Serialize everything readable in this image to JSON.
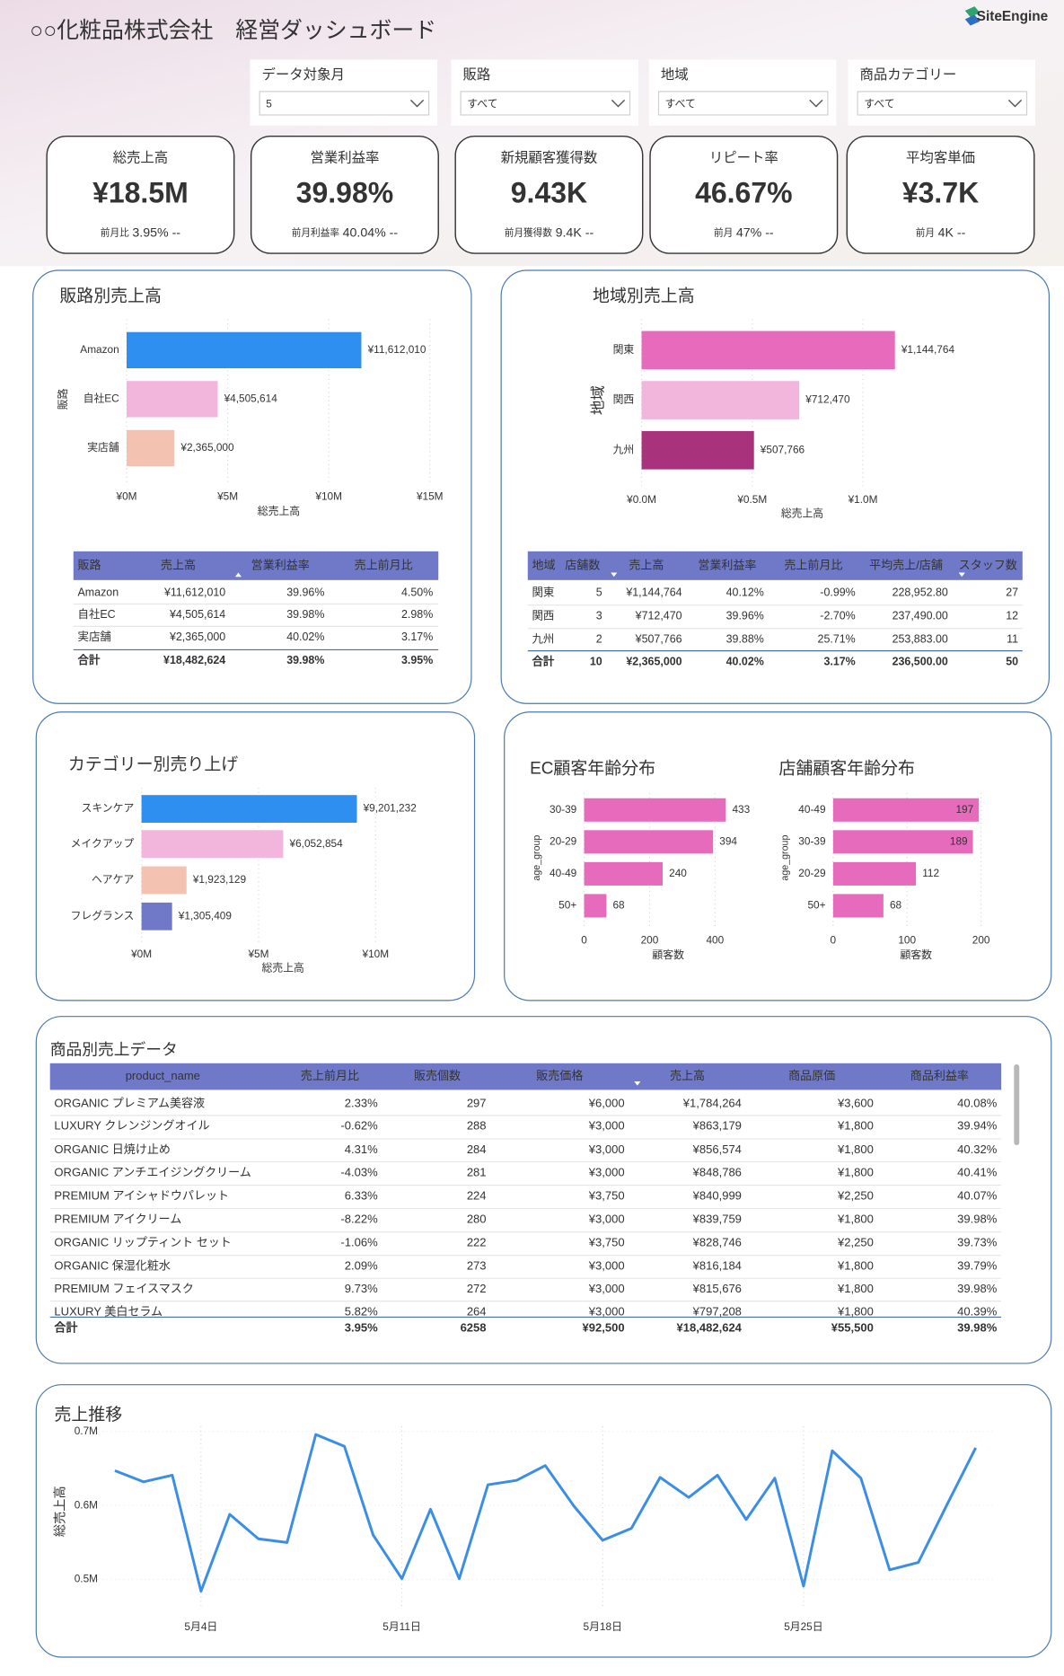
{
  "header": {
    "title": "○○化粧品株式会社　経営ダッシュボード",
    "logo": "SiteEngine"
  },
  "filters": [
    {
      "label": "データ対象月",
      "value": "5"
    },
    {
      "label": "販路",
      "value": "すべて"
    },
    {
      "label": "地域",
      "value": "すべて"
    },
    {
      "label": "商品カテゴリー",
      "value": "すべて"
    }
  ],
  "kpis": [
    {
      "label": "総売上高",
      "value": "¥18.5M",
      "sub_label": "前月比",
      "sub_value": "3.95% --"
    },
    {
      "label": "営業利益率",
      "value": "39.98%",
      "sub_label": "前月利益率",
      "sub_value": "40.04% --"
    },
    {
      "label": "新規顧客獲得数",
      "value": "9.43K",
      "sub_label": "前月獲得数",
      "sub_value": "9.4K --"
    },
    {
      "label": "リピート率",
      "value": "46.67%",
      "sub_label": "前月",
      "sub_value": "47% --"
    },
    {
      "label": "平均客単価",
      "value": "¥3.7K",
      "sub_label": "前月",
      "sub_value": "4K --"
    }
  ],
  "chart_data": [
    {
      "type": "bar",
      "title": "販路別売上高",
      "y_label": "販路",
      "x_label": "総売上高",
      "categories": [
        "Amazon",
        "自社EC",
        "実店舗"
      ],
      "values": [
        11612010,
        4505614,
        2365000
      ],
      "value_labels": [
        "¥11,612,010",
        "¥4,505,614",
        "¥2,365,000"
      ],
      "colors": [
        "#2e8ff0",
        "#f2b6dc",
        "#f3c2b0"
      ],
      "xlim": [
        0,
        15000000
      ],
      "xticks": [
        {
          "value": 0,
          "label": "¥0M"
        },
        {
          "value": 5000000,
          "label": "¥5M"
        },
        {
          "value": 10000000,
          "label": "¥10M"
        },
        {
          "value": 15000000,
          "label": "¥15M"
        }
      ],
      "grid": true
    },
    {
      "type": "bar",
      "title": "地域別売上高",
      "y_label": "地域",
      "x_label": "総売上高",
      "categories": [
        "関東",
        "関西",
        "九州"
      ],
      "values": [
        1144764,
        712470,
        507766
      ],
      "value_labels": [
        "¥1,144,764",
        "¥712,470",
        "¥507,766"
      ],
      "colors": [
        "#e76bbd",
        "#f2b6dc",
        "#a8327b"
      ],
      "xlim": [
        0,
        1500000
      ],
      "xticks": [
        {
          "value": 0,
          "label": "¥0.0M"
        },
        {
          "value": 500000,
          "label": "¥0.5M"
        },
        {
          "value": 1000000,
          "label": "¥1.0M"
        }
      ],
      "grid": true
    },
    {
      "type": "bar",
      "title": "カテゴリー別売り上げ",
      "x_label": "総売上高",
      "categories": [
        "スキンケア",
        "メイクアップ",
        "ヘアケア",
        "フレグランス"
      ],
      "values": [
        9201232,
        6052854,
        1923129,
        1305409
      ],
      "value_labels": [
        "¥9,201,232",
        "¥6,052,854",
        "¥1,923,129",
        "¥1,305,409"
      ],
      "colors": [
        "#2e8ff0",
        "#f2b6dc",
        "#f3c2b0",
        "#6f79c7"
      ],
      "xlim": [
        0,
        13000000
      ],
      "xticks": [
        {
          "value": 0,
          "label": "¥0M"
        },
        {
          "value": 5000000,
          "label": "¥5M"
        },
        {
          "value": 10000000,
          "label": "¥10M"
        }
      ],
      "grid": true
    },
    {
      "type": "bar",
      "title": "EC顧客年齢分布",
      "y_label": "age_group",
      "x_label": "顧客数",
      "categories": [
        "30-39",
        "20-29",
        "40-49",
        "50+"
      ],
      "values": [
        433,
        394,
        240,
        68
      ],
      "color": "#e76bbd",
      "xlim": [
        0,
        450
      ],
      "xticks": [
        0,
        200,
        400
      ],
      "grid": true
    },
    {
      "type": "bar",
      "title": "店舗顧客年齢分布",
      "y_label": "age_group",
      "x_label": "顧客数",
      "categories": [
        "40-49",
        "30-39",
        "20-29",
        "50+"
      ],
      "values": [
        197,
        189,
        112,
        68
      ],
      "color": "#e76bbd",
      "xlim": [
        0,
        210
      ],
      "xticks": [
        0,
        100,
        200
      ],
      "grid": true
    },
    {
      "type": "line",
      "title": "売上推移",
      "y_label": "総売上高",
      "x": [
        1,
        2,
        3,
        4,
        5,
        6,
        7,
        8,
        9,
        10,
        11,
        12,
        13,
        14,
        15,
        16,
        17,
        18,
        19,
        20,
        21,
        22,
        23,
        24,
        25,
        26,
        27,
        28,
        29,
        30,
        31
      ],
      "values": [
        647000,
        632000,
        641000,
        484000,
        588000,
        555000,
        550000,
        696000,
        680000,
        560000,
        501000,
        595000,
        501000,
        628000,
        634000,
        654000,
        599000,
        553000,
        569000,
        638000,
        611000,
        641000,
        581000,
        637000,
        491000,
        674000,
        637000,
        513000,
        523000,
        601000,
        678000
      ],
      "color": "#3a8ee6",
      "xlim": [
        1,
        31
      ],
      "xticks": [
        {
          "value": 4,
          "label": "5月4日"
        },
        {
          "value": 11,
          "label": "5月11日"
        },
        {
          "value": 18,
          "label": "5月18日"
        },
        {
          "value": 25,
          "label": "5月25日"
        }
      ],
      "ylim": [
        475000,
        705000
      ],
      "yticks": [
        {
          "value": 500000,
          "label": "0.5M"
        },
        {
          "value": 600000,
          "label": "0.6M"
        },
        {
          "value": 700000,
          "label": "0.7M"
        }
      ],
      "grid": true
    }
  ],
  "tables": [
    {
      "columns": [
        "販路",
        "売上高",
        "営業利益率",
        "売上前月比"
      ],
      "rows": [
        [
          "Amazon",
          "¥11,612,010",
          "39.96%",
          "4.50%"
        ],
        [
          "自社EC",
          "¥4,505,614",
          "39.98%",
          "2.98%"
        ],
        [
          "実店舗",
          "¥2,365,000",
          "40.02%",
          "3.17%"
        ]
      ],
      "total": [
        "合計",
        "¥18,482,624",
        "39.98%",
        "3.95%"
      ]
    },
    {
      "columns": [
        "地域",
        "店舗数",
        "売上高",
        "営業利益率",
        "売上前月比",
        "平均売上/店舗",
        "スタッフ数"
      ],
      "rows": [
        [
          "関東",
          "5",
          "¥1,144,764",
          "40.12%",
          "-0.99%",
          "228,952.80",
          "27"
        ],
        [
          "関西",
          "3",
          "¥712,470",
          "39.96%",
          "-2.70%",
          "237,490.00",
          "12"
        ],
        [
          "九州",
          "2",
          "¥507,766",
          "39.88%",
          "25.71%",
          "253,883.00",
          "11"
        ]
      ],
      "total": [
        "合計",
        "10",
        "¥2,365,000",
        "40.02%",
        "3.17%",
        "236,500.00",
        "50"
      ]
    },
    {
      "title": "商品別売上データ",
      "columns": [
        "product_name",
        "売上前月比",
        "販売個数",
        "販売価格",
        "売上高",
        "商品原価",
        "商品利益率"
      ],
      "rows": [
        [
          "ORGANIC プレミアム美容液",
          "2.33%",
          "297",
          "¥6,000",
          "¥1,784,264",
          "¥3,600",
          "40.08%"
        ],
        [
          "LUXURY クレンジングオイル",
          "-0.62%",
          "288",
          "¥3,000",
          "¥863,179",
          "¥1,800",
          "39.94%"
        ],
        [
          "ORGANIC 日焼け止め",
          "4.31%",
          "284",
          "¥3,000",
          "¥856,574",
          "¥1,800",
          "40.32%"
        ],
        [
          "ORGANIC アンチエイジングクリーム",
          "-4.03%",
          "281",
          "¥3,000",
          "¥848,786",
          "¥1,800",
          "40.41%"
        ],
        [
          "PREMIUM アイシャドウパレット",
          "6.33%",
          "224",
          "¥3,750",
          "¥840,999",
          "¥2,250",
          "40.07%"
        ],
        [
          "PREMIUM アイクリーム",
          "-8.22%",
          "280",
          "¥3,000",
          "¥839,759",
          "¥1,800",
          "39.98%"
        ],
        [
          "ORGANIC リップティント セット",
          "-1.06%",
          "222",
          "¥3,750",
          "¥828,746",
          "¥2,250",
          "39.73%"
        ],
        [
          "ORGANIC 保湿化粧水",
          "2.09%",
          "273",
          "¥3,000",
          "¥816,184",
          "¥1,800",
          "39.79%"
        ],
        [
          "PREMIUM フェイスマスク",
          "9.73%",
          "272",
          "¥3,000",
          "¥815,676",
          "¥1,800",
          "39.98%"
        ],
        [
          "LUXURY 美白セラム",
          "5.82%",
          "264",
          "¥3,000",
          "¥797,208",
          "¥1,800",
          "40.39%"
        ]
      ],
      "total": [
        "合計",
        "3.95%",
        "6258",
        "¥92,500",
        "¥18,482,624",
        "¥55,500",
        "39.98%"
      ]
    }
  ]
}
